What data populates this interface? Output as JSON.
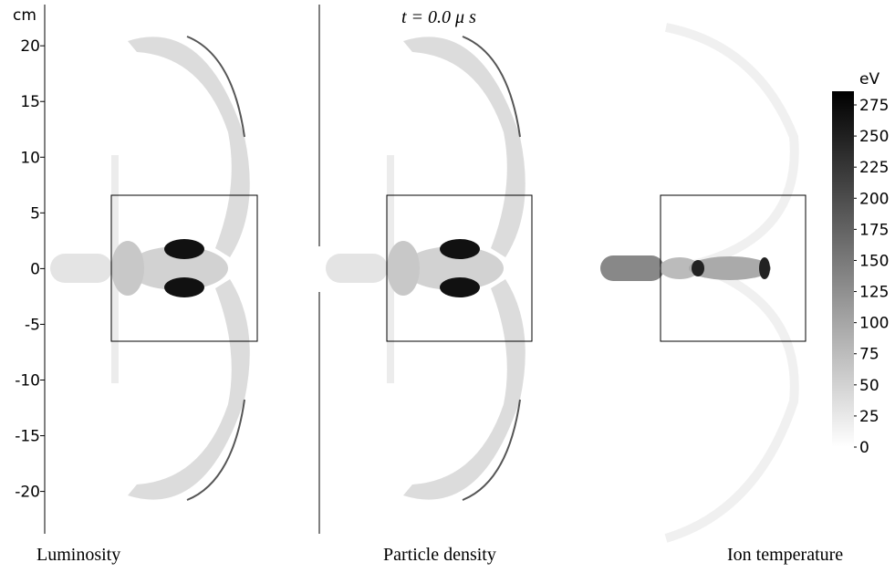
{
  "chart_data": {
    "type": "field-map",
    "title": "t = 0.0 μ s",
    "y_label": "cm",
    "ylim": [
      -23.8,
      23.7
    ],
    "yticks": [
      20,
      15,
      10,
      5,
      0,
      -5,
      -10,
      -15,
      -20
    ],
    "panels": [
      "Luminosity",
      "Particle density",
      "Ion temperature"
    ],
    "colorbar": {
      "label": "eV",
      "clim": [
        0,
        286
      ],
      "ticks": [
        0,
        25,
        50,
        75,
        100,
        125,
        150,
        175,
        200,
        225,
        250,
        275
      ]
    }
  }
}
